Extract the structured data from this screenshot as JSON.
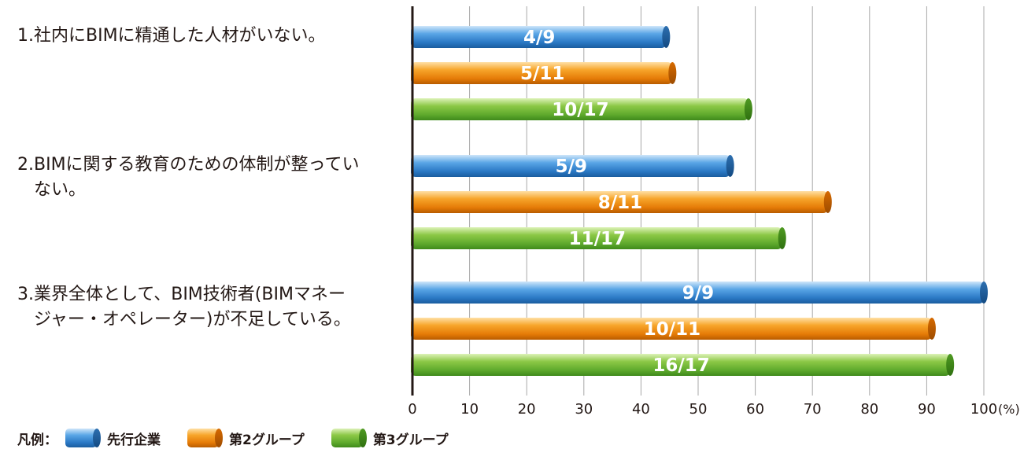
{
  "chart_data": {
    "type": "bar",
    "orientation": "horizontal",
    "title": "",
    "xlabel": "",
    "ylabel": "",
    "unit_label": "(%)",
    "xlim": [
      0,
      100
    ],
    "x_ticks": [
      0,
      10,
      20,
      30,
      40,
      50,
      60,
      70,
      80,
      90,
      100
    ],
    "grid": true,
    "categories": [
      "1.社内にBIMに精通した人材がいない。",
      "2.BIMに関する教育のための体制が整っていない。",
      "3.業界全体として、BIM技術者(BIMマネージャー・オペレーター)が不足している。"
    ],
    "category_lines": [
      [
        "1.社内にBIMに精通した人材がいない。"
      ],
      [
        "2.BIMに関する教育のための体制が整ってい",
        "ない。"
      ],
      [
        "3.業界全体として、BIM技術者(BIMマネー",
        "ジャー・オペレーター)が不足している。"
      ]
    ],
    "series": [
      {
        "name": "先行企業",
        "color": "#2f7fc8",
        "values": [
          44.4,
          55.6,
          100
        ],
        "labels": [
          "4/9",
          "5/9",
          "9/9"
        ]
      },
      {
        "name": "第2グループ",
        "color": "#e57b07",
        "values": [
          45.5,
          72.7,
          90.9
        ],
        "labels": [
          "5/11",
          "8/11",
          "10/11"
        ]
      },
      {
        "name": "第3グループ",
        "color": "#5ea92c",
        "values": [
          58.8,
          64.7,
          94.1
        ],
        "labels": [
          "10/17",
          "11/17",
          "16/17"
        ]
      }
    ],
    "legend": {
      "title": "凡例：",
      "position": "bottom-left"
    }
  }
}
